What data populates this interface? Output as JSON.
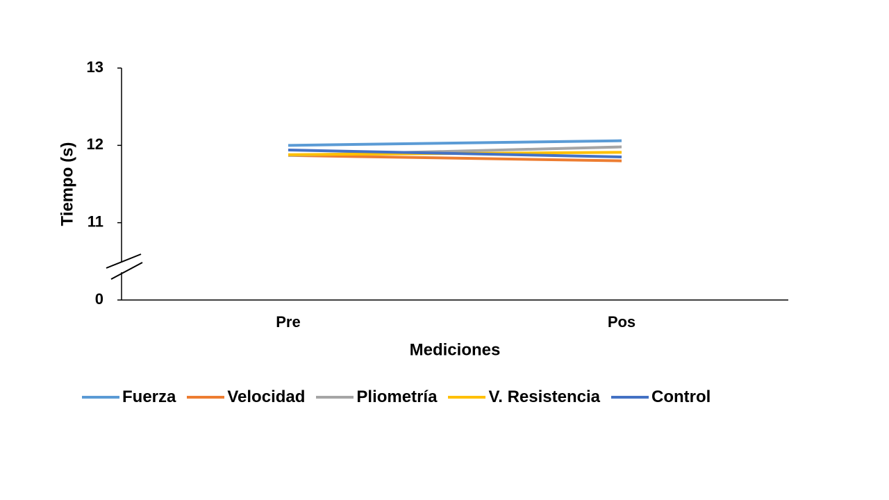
{
  "chart_data": {
    "type": "line",
    "x_label": "Mediciones",
    "y_label": "Tiempo (s)",
    "categories": [
      "Pre",
      "Pos"
    ],
    "series": [
      {
        "name": "Fuerza",
        "color": "#5b9bd5",
        "values": [
          12.0,
          12.06
        ]
      },
      {
        "name": "Velocidad",
        "color": "#ed7d31",
        "values": [
          11.87,
          11.8
        ]
      },
      {
        "name": "Pliometría",
        "color": "#a5a5a5",
        "values": [
          11.87,
          11.98
        ]
      },
      {
        "name": "V. Resistencia",
        "color": "#ffc000",
        "values": [
          11.88,
          11.91
        ]
      },
      {
        "name": "Control",
        "color": "#4472c4",
        "values": [
          11.94,
          11.85
        ]
      }
    ],
    "ylim": [
      0,
      13
    ],
    "yticks": [
      0,
      11,
      12,
      13
    ],
    "axis_break": true,
    "grid": false,
    "legend": "bottom"
  }
}
